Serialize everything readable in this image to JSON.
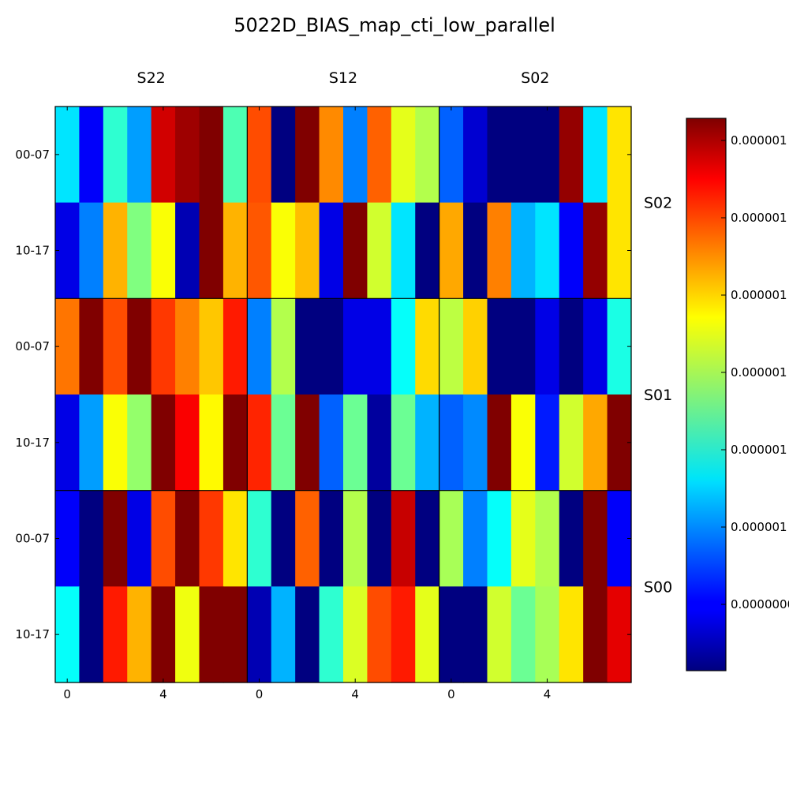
{
  "chart_data": {
    "type": "heatmap",
    "title": "5022D_BIAS_map_cti_low_parallel",
    "colormap": "jet",
    "column_groups": [
      "S22",
      "S12",
      "S02"
    ],
    "row_groups": [
      "S02",
      "S01",
      "S00"
    ],
    "y_tick_labels": [
      "00-07",
      "10-17"
    ],
    "x_tick_labels": [
      "0",
      "4"
    ],
    "x_tick_positions": [
      0,
      4
    ],
    "colorbar_tick_labels": [
      "0.000001",
      "0.000001",
      "0.000001",
      "0.000001",
      "0.000001",
      "0.000001",
      "0.0000000"
    ],
    "colorbar_tick_levels": [
      0.96,
      0.82,
      0.68,
      0.54,
      0.4,
      0.26,
      0.12
    ],
    "value_scale": "normalized 0-1 position on the color scale",
    "values": [
      [
        0.35,
        0.12,
        0.42,
        0.28,
        0.92,
        0.97,
        1.0,
        0.45,
        0.8,
        0.0,
        1.0,
        0.74,
        0.25,
        0.78,
        0.6,
        0.55,
        0.22,
        0.08,
        0.0,
        0.0,
        0.0,
        0.98,
        0.35,
        0.65
      ],
      [
        0.1,
        0.25,
        0.7,
        0.5,
        0.62,
        0.05,
        1.0,
        0.7,
        0.79,
        0.62,
        0.69,
        0.1,
        1.0,
        0.58,
        0.35,
        0.0,
        0.71,
        0.0,
        0.75,
        0.3,
        0.35,
        0.12,
        0.98,
        0.65
      ],
      [
        0.76,
        1.0,
        0.8,
        1.0,
        0.82,
        0.75,
        0.68,
        0.85,
        0.25,
        0.55,
        0.0,
        0.0,
        0.1,
        0.1,
        0.38,
        0.66,
        0.56,
        0.67,
        0.0,
        0.0,
        0.1,
        0.0,
        0.1,
        0.4
      ],
      [
        0.1,
        0.28,
        0.62,
        0.52,
        1.0,
        0.88,
        0.63,
        1.0,
        0.84,
        0.48,
        1.0,
        0.22,
        0.48,
        0.03,
        0.48,
        0.3,
        0.22,
        0.26,
        1.0,
        0.62,
        0.15,
        0.58,
        0.71,
        1.0
      ],
      [
        0.12,
        0.0,
        1.0,
        0.1,
        0.8,
        1.0,
        0.82,
        0.65,
        0.42,
        0.0,
        0.78,
        0.0,
        0.55,
        0.0,
        0.93,
        0.0,
        0.54,
        0.25,
        0.38,
        0.6,
        0.55,
        0.0,
        1.0,
        0.12
      ],
      [
        0.38,
        0.0,
        0.85,
        0.7,
        1.0,
        0.61,
        1.0,
        1.0,
        0.05,
        0.3,
        0.0,
        0.42,
        0.59,
        0.8,
        0.85,
        0.6,
        0.0,
        0.0,
        0.58,
        0.48,
        0.54,
        0.65,
        1.0,
        0.9
      ]
    ]
  }
}
